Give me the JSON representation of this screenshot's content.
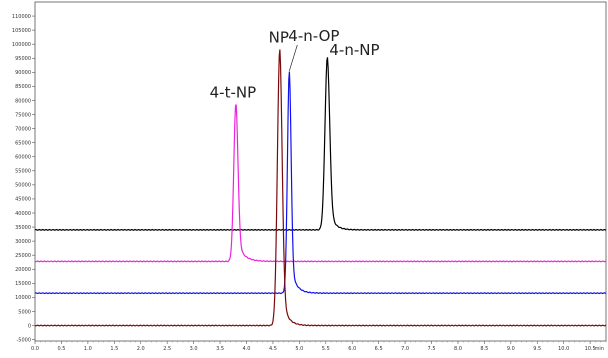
{
  "chart_data": {
    "type": "line",
    "title": "",
    "xlabel": "min",
    "ylabel": "",
    "xlim": [
      0.0,
      10.8
    ],
    "ylim": [
      -5500,
      115000
    ],
    "x_ticks": [
      "0.0",
      "0.5",
      "1.0",
      "1.5",
      "2.0",
      "2.5",
      "3.0",
      "3.5",
      "4.0",
      "4.5",
      "5.0",
      "5.5",
      "6.0",
      "6.5",
      "7.0",
      "7.5",
      "8.0",
      "8.5",
      "9.0",
      "9.5",
      "10.0",
      "10.5"
    ],
    "y_ticks": [
      "-5000",
      "0",
      "5000",
      "10000",
      "15000",
      "20000",
      "25000",
      "30000",
      "35000",
      "40000",
      "45000",
      "50000",
      "55000",
      "60000",
      "65000",
      "70000",
      "75000",
      "80000",
      "85000",
      "90000",
      "95000",
      "100000",
      "105000",
      "110000"
    ],
    "grid": false,
    "legend": "none",
    "series": [
      {
        "color": "#000000",
        "baseline": 34000,
        "peak_x": 5.53,
        "peak_y": 95500,
        "sigma": 0.045,
        "tail": 0.1
      },
      {
        "color": "#ee22dd",
        "baseline": 22800,
        "peak_x": 3.8,
        "peak_y": 79000,
        "sigma": 0.04,
        "tail": 0.12
      },
      {
        "color": "#1111ee",
        "baseline": 11500,
        "peak_x": 4.81,
        "peak_y": 90500,
        "sigma": 0.035,
        "tail": 0.1
      },
      {
        "color": "#7a0a0a",
        "baseline": 0,
        "peak_x": 4.63,
        "peak_y": 98500,
        "sigma": 0.045,
        "tail": 0.1
      }
    ],
    "annotations": [
      {
        "text": "4-t-NP",
        "x": 3.8,
        "y": 79000
      },
      {
        "text": "NP",
        "x": 4.63,
        "y": 98500
      },
      {
        "text": "4-n-OP",
        "x": 4.81,
        "y": 90500
      },
      {
        "text": "4-n-NP",
        "x": 5.53,
        "y": 95500
      }
    ]
  }
}
